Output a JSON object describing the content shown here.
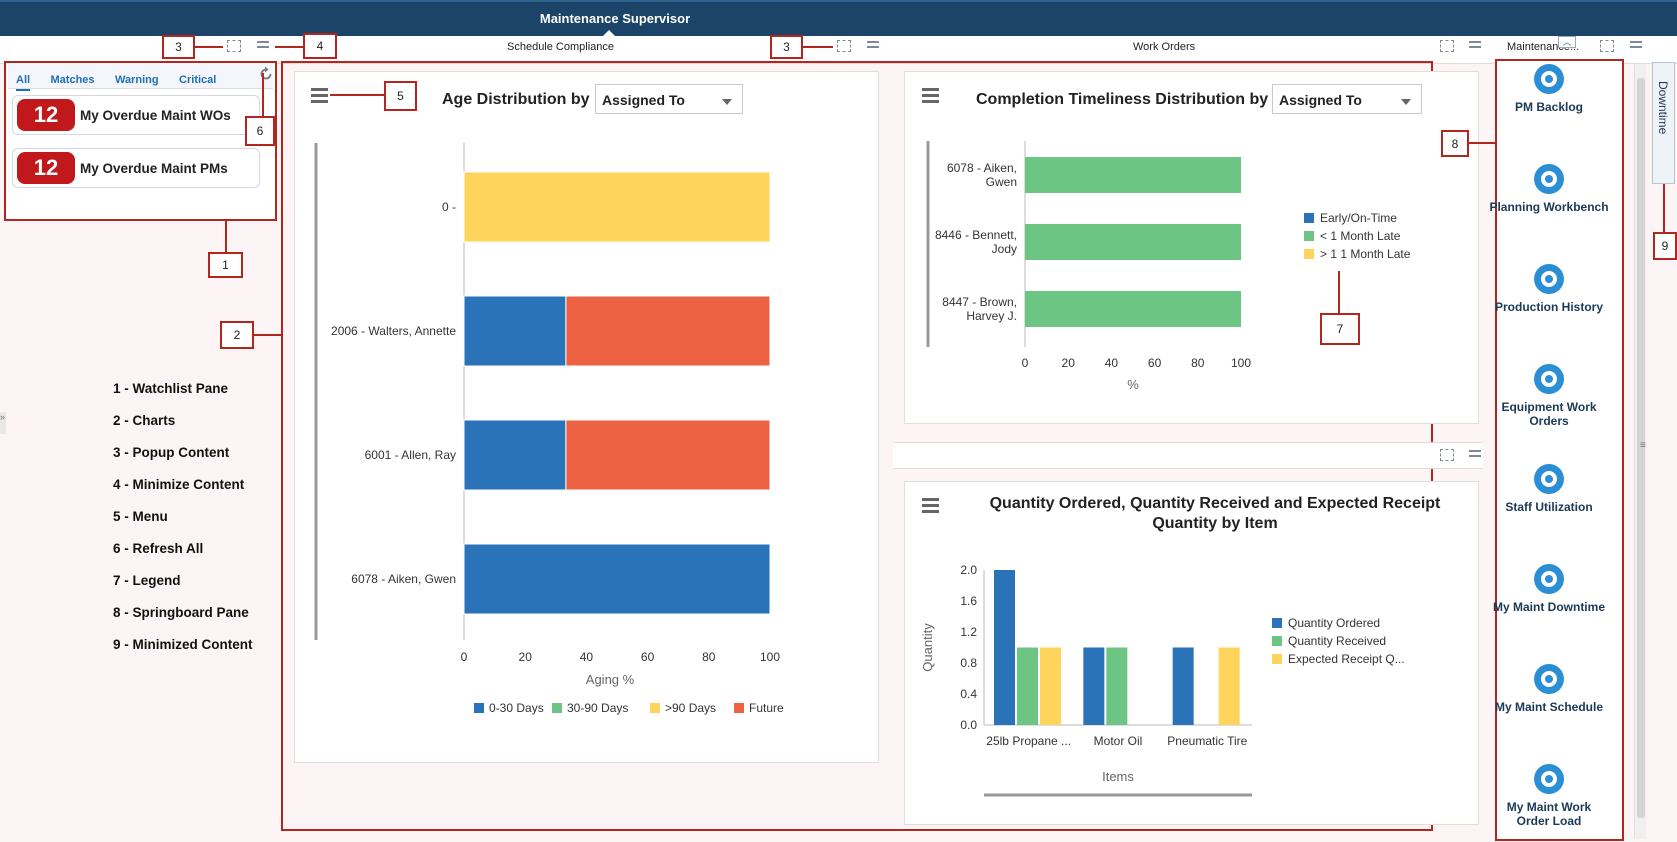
{
  "app": {
    "title": "Maintenance Supervisor"
  },
  "band": {
    "schedule_compliance": "Schedule Compliance",
    "work_orders": "Work Orders",
    "maintenance_truncated": "Maintenance..."
  },
  "watchlist": {
    "tabs": [
      "All",
      "Matches",
      "Warning",
      "Critical"
    ],
    "cards": [
      {
        "count": "12",
        "label": "My Overdue Maint WOs"
      },
      {
        "count": "12",
        "label": "My Overdue Maint PMs"
      }
    ]
  },
  "callouts": [
    "1",
    "2",
    "3",
    "3",
    "4",
    "5",
    "6",
    "7",
    "8",
    "9"
  ],
  "legend_list": [
    "1 - Watchlist Pane",
    "2 - Charts",
    "3 - Popup Content",
    "4 - Minimize Content",
    "5 - Menu",
    "6 - Refresh All",
    "7 - Legend",
    "8 - Springboard Pane",
    "9 - Minimized Content"
  ],
  "minimized_content": {
    "label": "Downtime"
  },
  "springboard": [
    {
      "label": "PM Backlog",
      "icon": "pm-backlog-icon"
    },
    {
      "label": "Planning Workbench",
      "icon": "planning-workbench-icon"
    },
    {
      "label": "Production History",
      "icon": "factory-icon"
    },
    {
      "label": "Equipment Work Orders",
      "icon": "equipment-work-orders-icon"
    },
    {
      "label": "Staff Utilization",
      "icon": "staff-utilization-icon"
    },
    {
      "label": "My Maint Downtime",
      "icon": "maint-downtime-icon"
    },
    {
      "label": "My Maint Schedule",
      "icon": "maint-schedule-icon"
    },
    {
      "label": "My Maint Work Order Load",
      "icon": "work-order-load-icon"
    }
  ],
  "chart_data": [
    {
      "type": "bar",
      "orientation": "horizontal",
      "stacked": true,
      "title": "Age Distribution by",
      "group_by": "Assigned To",
      "categories": [
        "0 -",
        "2006 - Walters, Annette",
        "6001 - Allen, Ray",
        "6078 - Aiken, Gwen"
      ],
      "series": [
        {
          "name": "0-30 Days",
          "color": "#2a73b8",
          "values": [
            0,
            33.3,
            33.3,
            100
          ]
        },
        {
          "name": "30-90 Days",
          "color": "#6cc583",
          "values": [
            0,
            0,
            0,
            0
          ]
        },
        {
          "name": ">90 Days",
          "color": "#ffd45c",
          "values": [
            100,
            0,
            0,
            0
          ]
        },
        {
          "name": "Future",
          "color": "#ee6244",
          "values": [
            0,
            66.7,
            66.7,
            0
          ]
        }
      ],
      "xlabel": "Aging %",
      "xlim": [
        0,
        100
      ],
      "xticks": [
        "0",
        "20",
        "40",
        "60",
        "80",
        "100"
      ],
      "legend": "bottom"
    },
    {
      "type": "bar",
      "orientation": "horizontal",
      "stacked": true,
      "title": "Completion Timeliness Distribution by",
      "group_by": "Assigned To",
      "categories": [
        "6078 - Aiken, Gwen",
        "8446 - Bennett, Jody",
        "8447 - Brown, Harvey J."
      ],
      "category_lines": [
        [
          "6078 - Aiken,",
          "Gwen"
        ],
        [
          "8446 - Bennett,",
          "Jody"
        ],
        [
          "8447 - Brown,",
          "Harvey J."
        ]
      ],
      "series": [
        {
          "name": "Early/On-Time",
          "color": "#2a73b8",
          "values": [
            0,
            0,
            0
          ]
        },
        {
          "name": "< 1 Month Late",
          "color": "#6cc583",
          "values": [
            100,
            100,
            100
          ]
        },
        {
          "name": "> 1 1 Month Late",
          "color": "#ffd45c",
          "values": [
            0,
            0,
            0
          ]
        }
      ],
      "xlabel": "%",
      "xlim": [
        0,
        100
      ],
      "xticks": [
        "0",
        "20",
        "40",
        "60",
        "80",
        "100"
      ],
      "legend": "right"
    },
    {
      "type": "bar",
      "orientation": "vertical",
      "title_lines": [
        "Quantity Ordered, Quantity Received and Expected Receipt",
        "Quantity by Item"
      ],
      "categories": [
        "25lb Propane ...",
        "Motor Oil",
        "Pneumatic Tire"
      ],
      "series": [
        {
          "name": "Quantity Ordered",
          "color": "#2a73b8",
          "values": [
            2,
            1,
            1
          ]
        },
        {
          "name": "Quantity Received",
          "color": "#6cc583",
          "values": [
            1,
            1,
            0
          ]
        },
        {
          "name": "Expected Receipt Q...",
          "color": "#ffd45c",
          "values": [
            1,
            0,
            1
          ]
        }
      ],
      "xlabel": "Items",
      "ylabel": "Quantity",
      "ylim": [
        0,
        2
      ],
      "yticks": [
        "0.0",
        "0.4",
        "0.8",
        "1.2",
        "1.6",
        "2.0"
      ],
      "legend": "right"
    }
  ]
}
